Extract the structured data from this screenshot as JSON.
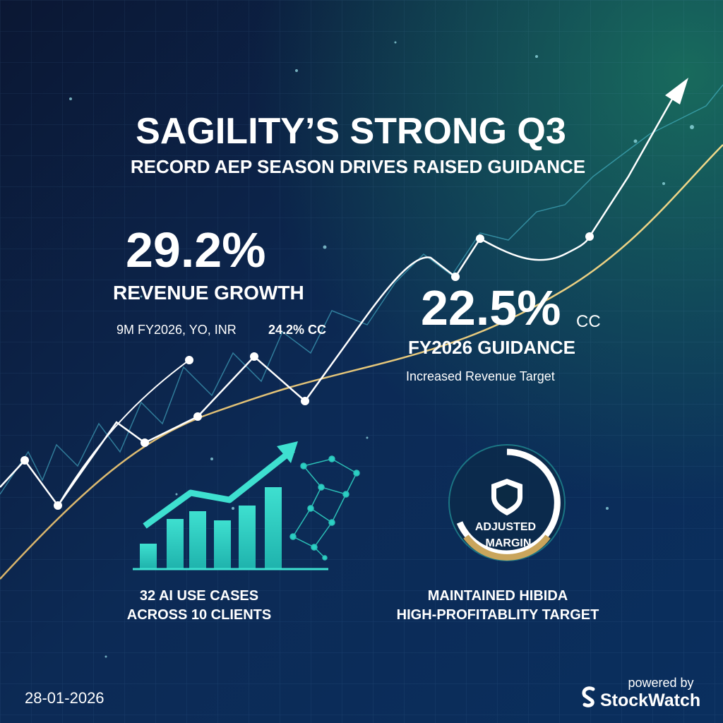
{
  "header": {
    "title": "SAGILITY’S STRONG Q3",
    "subtitle": "RECORD AEP SEASON DRIVES RAISED GUIDANCE"
  },
  "revenue": {
    "value": "29.2%",
    "label": "REVENUE GROWTH",
    "note": "9M FY2026, YO, INR",
    "note_cc": "24.2% CC"
  },
  "guidance": {
    "value": "22.5%",
    "suffix": "CC",
    "label": "FY2026 GUIDANCE",
    "note": "Increased Revenue Target"
  },
  "ai": {
    "lines": [
      "32 AI USE CASES",
      "ACROSS 10 CLIENTS"
    ]
  },
  "margin": {
    "badge": [
      "ADJUSTED",
      "MARGIN"
    ],
    "lines": [
      "MAINTAINED HIBIDA",
      "HIGH-PROFITABLITY TARGET"
    ]
  },
  "footer": {
    "date": "28-01-2026",
    "powered": "powered by",
    "brand": "StockWatch"
  }
}
